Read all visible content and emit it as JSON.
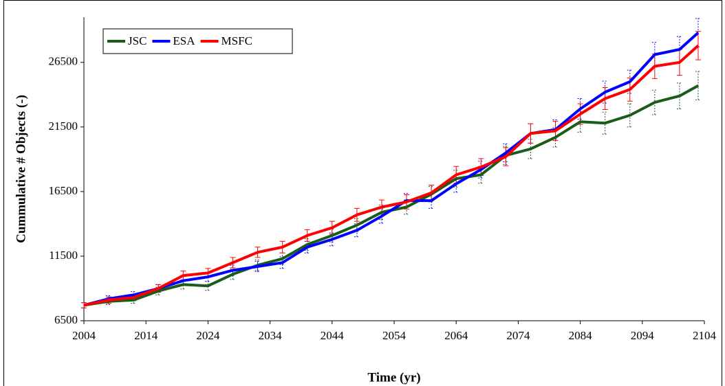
{
  "chart_data": {
    "type": "line",
    "x_label": "Time (yr)",
    "y_label": "Cummulative # Objects (-)",
    "x": [
      2004,
      2008,
      2012,
      2016,
      2020,
      2024,
      2028,
      2032,
      2036,
      2040,
      2044,
      2048,
      2052,
      2056,
      2060,
      2064,
      2068,
      2072,
      2076,
      2080,
      2084,
      2088,
      2092,
      2096,
      2100,
      2103
    ],
    "series": [
      {
        "name": "JSC",
        "color": "#1a5c1a",
        "values": [
          7700,
          8000,
          8100,
          8800,
          9300,
          9200,
          10100,
          10800,
          11300,
          12400,
          13100,
          13900,
          14900,
          15300,
          16300,
          17500,
          17800,
          19300,
          19800,
          20700,
          21900,
          21800,
          22400,
          23400,
          23900,
          24700
        ],
        "errors": [
          200,
          250,
          250,
          300,
          350,
          350,
          400,
          400,
          450,
          450,
          500,
          500,
          550,
          550,
          600,
          650,
          650,
          700,
          750,
          750,
          800,
          850,
          900,
          950,
          1000,
          1100
        ]
      },
      {
        "name": "ESA",
        "color": "#0000ff",
        "values": [
          7700,
          8200,
          8500,
          9000,
          9600,
          9900,
          10400,
          10700,
          11000,
          12200,
          12800,
          13500,
          14600,
          15800,
          15800,
          17100,
          18200,
          19500,
          21000,
          21300,
          22900,
          24200,
          25000,
          27100,
          27500,
          28800
        ],
        "errors": [
          200,
          250,
          250,
          300,
          350,
          350,
          400,
          400,
          450,
          450,
          500,
          500,
          550,
          550,
          600,
          650,
          650,
          700,
          750,
          750,
          800,
          850,
          900,
          950,
          1000,
          1100
        ]
      },
      {
        "name": "MSFC",
        "color": "#ff0000",
        "values": [
          7700,
          8100,
          8300,
          9000,
          10000,
          10200,
          11000,
          11800,
          12200,
          13100,
          13700,
          14700,
          15300,
          15700,
          16400,
          17800,
          18400,
          19200,
          21000,
          21200,
          22500,
          23700,
          24400,
          26200,
          26500,
          27800
        ],
        "errors": [
          200,
          250,
          250,
          300,
          350,
          350,
          400,
          400,
          450,
          450,
          500,
          500,
          550,
          550,
          600,
          650,
          650,
          700,
          750,
          750,
          800,
          850,
          900,
          950,
          1000,
          1100
        ]
      }
    ],
    "xlim": [
      2004,
      2104
    ],
    "xticks": [
      2004,
      2014,
      2024,
      2034,
      2044,
      2054,
      2064,
      2074,
      2084,
      2094,
      2104
    ],
    "ylim": [
      6500,
      30000
    ],
    "yticks": [
      6500,
      11500,
      16500,
      21500,
      26500
    ],
    "grid": false,
    "legend": "upper left"
  }
}
